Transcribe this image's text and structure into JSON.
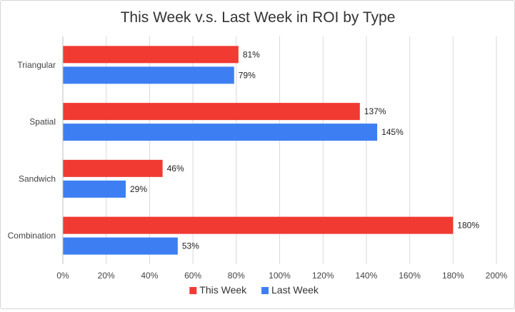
{
  "chart_data": {
    "type": "bar",
    "orientation": "horizontal",
    "title": "This Week v.s. Last Week in ROI by Type",
    "xlabel": "",
    "ylabel": "",
    "categories": [
      "Triangular",
      "Spatial",
      "Sandwich",
      "Combination"
    ],
    "series": [
      {
        "name": "This Week",
        "color": "#f03a32",
        "values": [
          81,
          137,
          46,
          180
        ],
        "labels": [
          "81%",
          "137%",
          "46%",
          "180%"
        ]
      },
      {
        "name": "Last Week",
        "color": "#3d7ff2",
        "values": [
          79,
          145,
          29,
          53
        ],
        "labels": [
          "79%",
          "145%",
          "29%",
          "53%"
        ]
      }
    ],
    "xlim": [
      0,
      200
    ],
    "x_ticks": [
      0,
      20,
      40,
      60,
      80,
      100,
      120,
      140,
      160,
      180,
      200
    ],
    "x_tick_labels": [
      "0%",
      "20%",
      "40%",
      "60%",
      "80%",
      "100%",
      "120%",
      "140%",
      "160%",
      "180%",
      "200%"
    ],
    "grid": true,
    "legend": "bottom"
  }
}
